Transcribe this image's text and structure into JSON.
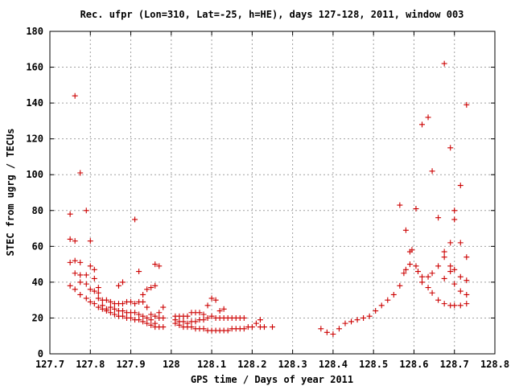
{
  "chart_data": {
    "type": "scatter",
    "title": "Rec. ufpr (Lon=310, Lat=-25, h=HE), days 127-128, 2011, window 003",
    "xlabel": "GPS time / Days of year 2011",
    "ylabel": "STEC from ugrg / TECUs",
    "xlim": [
      127.7,
      128.8
    ],
    "ylim": [
      0,
      180
    ],
    "xticks": [
      127.7,
      127.8,
      127.9,
      128,
      128.1,
      128.2,
      128.3,
      128.4,
      128.5,
      128.6,
      128.7,
      128.8
    ],
    "xtick_labels": [
      "127.7",
      "127.8",
      "127.9",
      "128",
      "128.1",
      "128.2",
      "128.3",
      "128.4",
      "128.5",
      "128.6",
      "128.7",
      "128.8"
    ],
    "yticks": [
      0,
      20,
      40,
      60,
      80,
      100,
      120,
      140,
      160,
      180
    ],
    "ytick_labels": [
      "0",
      "20",
      "40",
      "60",
      "80",
      "100",
      "120",
      "140",
      "160",
      "180"
    ],
    "grid": true,
    "marker": "+",
    "color": "#cc0000",
    "points": [
      [
        127.75,
        78
      ],
      [
        127.75,
        64
      ],
      [
        127.75,
        51
      ],
      [
        127.75,
        38
      ],
      [
        127.762,
        144
      ],
      [
        127.762,
        63
      ],
      [
        127.762,
        52
      ],
      [
        127.762,
        45
      ],
      [
        127.762,
        36
      ],
      [
        127.775,
        101
      ],
      [
        127.775,
        51
      ],
      [
        127.775,
        44
      ],
      [
        127.775,
        40
      ],
      [
        127.775,
        33
      ],
      [
        127.79,
        80
      ],
      [
        127.79,
        44
      ],
      [
        127.79,
        39
      ],
      [
        127.79,
        31
      ],
      [
        127.8,
        63
      ],
      [
        127.8,
        49
      ],
      [
        127.8,
        36
      ],
      [
        127.8,
        29
      ],
      [
        127.81,
        47
      ],
      [
        127.81,
        42
      ],
      [
        127.81,
        35
      ],
      [
        127.81,
        28
      ],
      [
        127.82,
        37
      ],
      [
        127.82,
        34
      ],
      [
        127.82,
        31
      ],
      [
        127.82,
        26
      ],
      [
        127.83,
        30
      ],
      [
        127.83,
        27
      ],
      [
        127.83,
        25
      ],
      [
        127.84,
        30
      ],
      [
        127.84,
        25
      ],
      [
        127.84,
        24
      ],
      [
        127.85,
        29
      ],
      [
        127.85,
        26
      ],
      [
        127.85,
        23
      ],
      [
        127.86,
        28
      ],
      [
        127.86,
        25
      ],
      [
        127.86,
        22
      ],
      [
        127.87,
        38
      ],
      [
        127.87,
        28
      ],
      [
        127.87,
        24
      ],
      [
        127.87,
        21
      ],
      [
        127.88,
        40
      ],
      [
        127.88,
        28
      ],
      [
        127.88,
        24
      ],
      [
        127.88,
        21
      ],
      [
        127.89,
        29
      ],
      [
        127.89,
        23
      ],
      [
        127.89,
        20
      ],
      [
        127.9,
        29
      ],
      [
        127.9,
        23
      ],
      [
        127.9,
        20
      ],
      [
        127.91,
        75
      ],
      [
        127.91,
        28
      ],
      [
        127.91,
        23
      ],
      [
        127.91,
        19
      ],
      [
        127.92,
        46
      ],
      [
        127.92,
        29
      ],
      [
        127.92,
        22
      ],
      [
        127.92,
        19
      ],
      [
        127.93,
        33
      ],
      [
        127.93,
        29
      ],
      [
        127.93,
        21
      ],
      [
        127.93,
        18
      ],
      [
        127.94,
        36
      ],
      [
        127.94,
        26
      ],
      [
        127.94,
        20
      ],
      [
        127.94,
        17
      ],
      [
        127.95,
        37
      ],
      [
        127.95,
        22
      ],
      [
        127.95,
        19
      ],
      [
        127.95,
        16
      ],
      [
        127.96,
        50
      ],
      [
        127.96,
        38
      ],
      [
        127.96,
        21
      ],
      [
        127.96,
        17
      ],
      [
        127.96,
        15
      ],
      [
        127.97,
        49
      ],
      [
        127.97,
        23
      ],
      [
        127.97,
        20
      ],
      [
        127.97,
        15
      ],
      [
        127.98,
        26
      ],
      [
        127.98,
        20
      ],
      [
        127.98,
        15
      ],
      [
        128.01,
        21
      ],
      [
        128.01,
        19
      ],
      [
        128.01,
        17
      ],
      [
        128.02,
        21
      ],
      [
        128.02,
        18
      ],
      [
        128.02,
        16
      ],
      [
        128.03,
        21
      ],
      [
        128.03,
        18
      ],
      [
        128.03,
        15
      ],
      [
        128.04,
        21
      ],
      [
        128.04,
        17
      ],
      [
        128.04,
        15
      ],
      [
        128.05,
        23
      ],
      [
        128.05,
        18
      ],
      [
        128.05,
        15
      ],
      [
        128.06,
        23
      ],
      [
        128.06,
        18
      ],
      [
        128.06,
        14
      ],
      [
        128.07,
        23
      ],
      [
        128.07,
        19
      ],
      [
        128.07,
        14
      ],
      [
        128.08,
        22
      ],
      [
        128.08,
        19
      ],
      [
        128.08,
        14
      ],
      [
        128.09,
        27
      ],
      [
        128.09,
        20
      ],
      [
        128.09,
        13
      ],
      [
        128.1,
        31
      ],
      [
        128.1,
        21
      ],
      [
        128.1,
        13
      ],
      [
        128.11,
        30
      ],
      [
        128.11,
        20
      ],
      [
        128.11,
        13
      ],
      [
        128.12,
        24
      ],
      [
        128.12,
        20
      ],
      [
        128.12,
        13
      ],
      [
        128.13,
        25
      ],
      [
        128.13,
        20
      ],
      [
        128.13,
        13
      ],
      [
        128.14,
        20
      ],
      [
        128.14,
        13
      ],
      [
        128.15,
        20
      ],
      [
        128.15,
        14
      ],
      [
        128.16,
        20
      ],
      [
        128.16,
        14
      ],
      [
        128.17,
        20
      ],
      [
        128.17,
        14
      ],
      [
        128.18,
        20
      ],
      [
        128.18,
        14
      ],
      [
        128.19,
        15
      ],
      [
        128.2,
        15
      ],
      [
        128.21,
        17
      ],
      [
        128.22,
        19
      ],
      [
        128.22,
        15
      ],
      [
        128.23,
        15
      ],
      [
        128.25,
        15
      ],
      [
        128.37,
        14
      ],
      [
        128.385,
        12
      ],
      [
        128.4,
        11
      ],
      [
        128.415,
        14
      ],
      [
        128.43,
        17
      ],
      [
        128.445,
        18
      ],
      [
        128.46,
        19
      ],
      [
        128.475,
        20
      ],
      [
        128.49,
        21
      ],
      [
        128.505,
        24
      ],
      [
        128.52,
        27
      ],
      [
        128.535,
        30
      ],
      [
        128.55,
        33
      ],
      [
        128.565,
        83
      ],
      [
        128.565,
        38
      ],
      [
        128.575,
        45
      ],
      [
        128.58,
        69
      ],
      [
        128.58,
        47
      ],
      [
        128.59,
        57
      ],
      [
        128.59,
        50
      ],
      [
        128.595,
        58
      ],
      [
        128.605,
        81
      ],
      [
        128.605,
        49
      ],
      [
        128.61,
        46
      ],
      [
        128.62,
        128
      ],
      [
        128.62,
        43
      ],
      [
        128.62,
        40
      ],
      [
        128.635,
        132
      ],
      [
        128.635,
        43
      ],
      [
        128.635,
        37
      ],
      [
        128.645,
        102
      ],
      [
        128.645,
        45
      ],
      [
        128.645,
        34
      ],
      [
        128.66,
        76
      ],
      [
        128.66,
        49
      ],
      [
        128.66,
        30
      ],
      [
        128.675,
        162
      ],
      [
        128.675,
        57
      ],
      [
        128.675,
        54
      ],
      [
        128.675,
        42
      ],
      [
        128.675,
        28
      ],
      [
        128.69,
        115
      ],
      [
        128.69,
        62
      ],
      [
        128.69,
        49
      ],
      [
        128.69,
        46
      ],
      [
        128.69,
        27
      ],
      [
        128.7,
        80
      ],
      [
        128.7,
        75
      ],
      [
        128.7,
        47
      ],
      [
        128.7,
        39
      ],
      [
        128.7,
        27
      ],
      [
        128.715,
        94
      ],
      [
        128.715,
        62
      ],
      [
        128.715,
        43
      ],
      [
        128.715,
        35
      ],
      [
        128.715,
        27
      ],
      [
        128.73,
        139
      ],
      [
        128.73,
        54
      ],
      [
        128.73,
        41
      ],
      [
        128.73,
        33
      ],
      [
        128.73,
        28
      ]
    ]
  }
}
